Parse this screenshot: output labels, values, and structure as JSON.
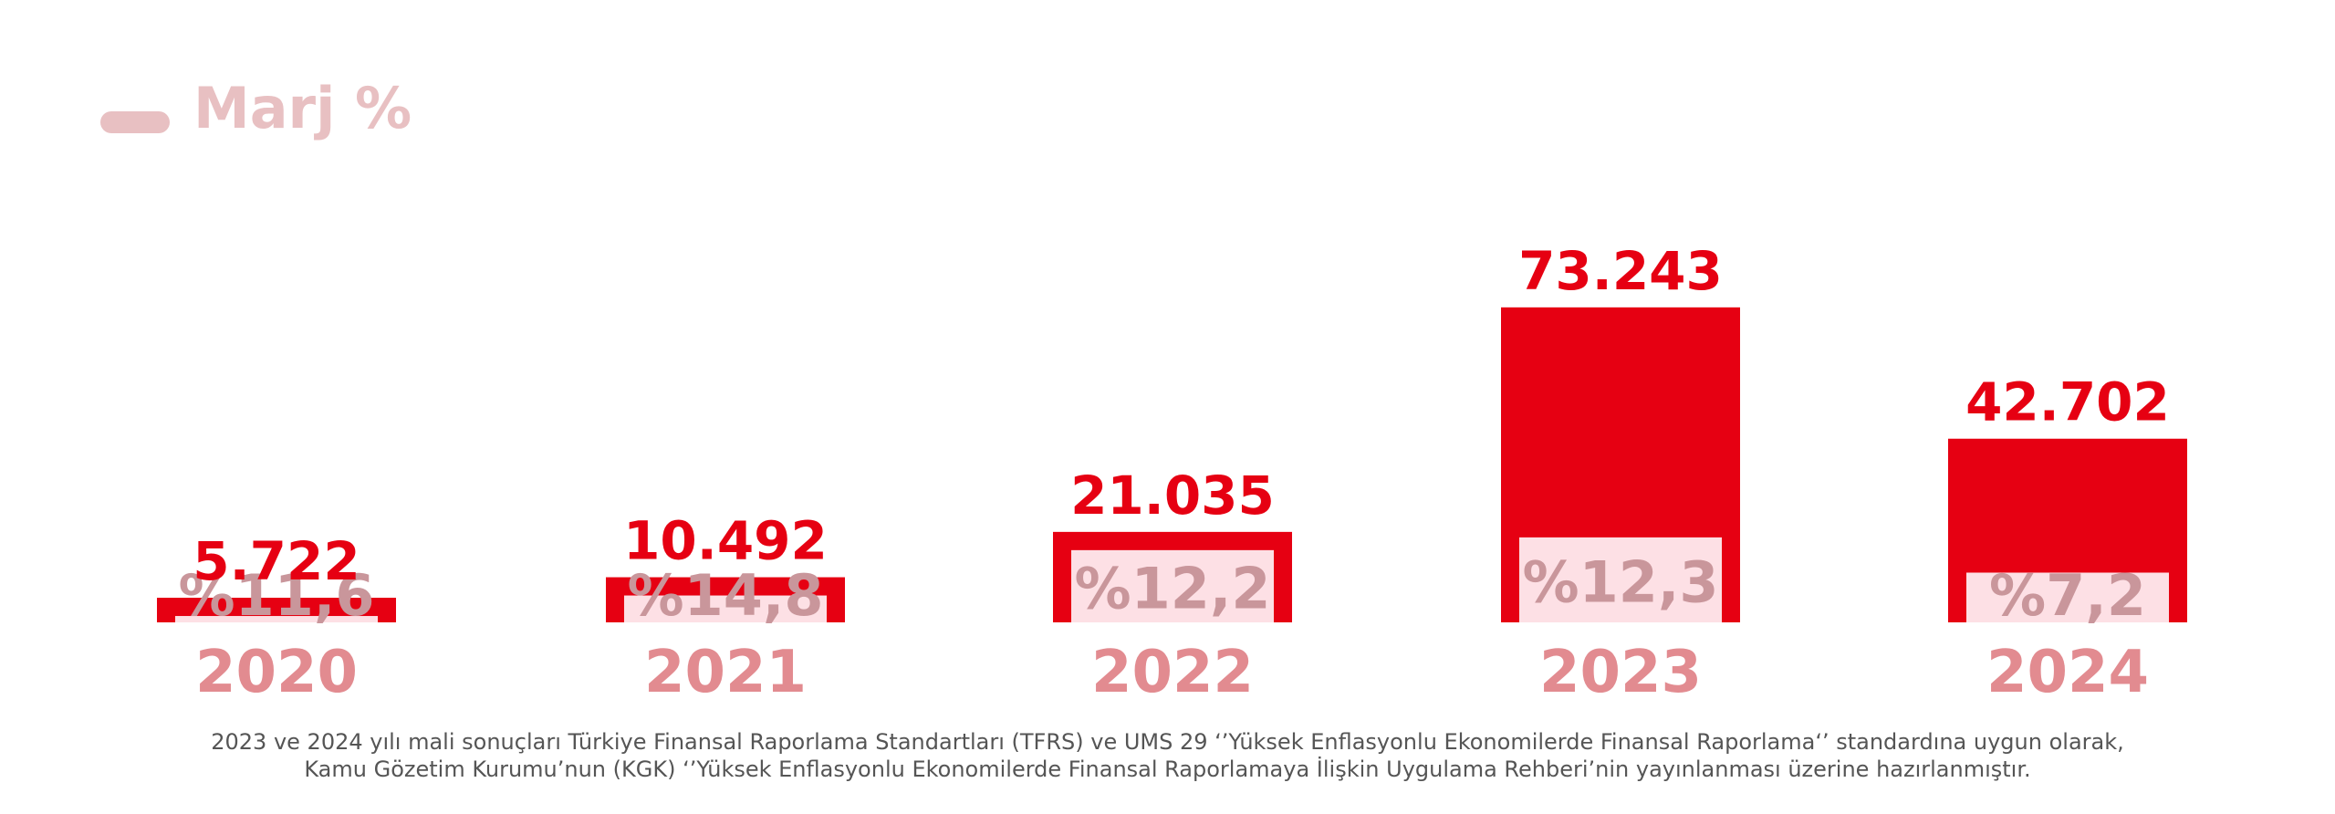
{
  "chart_data": {
    "type": "bar",
    "categories": [
      "2020",
      "2021",
      "2022",
      "2023",
      "2024"
    ],
    "series": [
      {
        "values": [
          5722,
          10492,
          21035,
          73243,
          42702
        ],
        "value_labels": [
          "5.722",
          "10.492",
          "21.035",
          "73.243",
          "42.702"
        ]
      },
      {
        "name": "Marj %",
        "values": [
          11.6,
          14.8,
          12.2,
          12.3,
          7.2
        ],
        "value_labels": [
          "%11,6",
          "%14,8",
          "%12,2",
          "%12,3",
          "%7,2"
        ]
      }
    ],
    "legend": {
      "label": "Marj %",
      "placement": "top-left"
    },
    "colors": {
      "bar": "#e60012",
      "margin_fill": "#fde0e5",
      "value_label": "#e60012",
      "margin_label": "#c9969b",
      "category_label": "#e28b90",
      "legend": "#e8c0c2"
    },
    "xlabel": "",
    "ylabel": ""
  },
  "footnote": {
    "line1": "2023 ve 2024 yılı mali sonuçları Türkiye Finansal Raporlama Standartları (TFRS) ve UMS 29 ‘’Yüksek Enflasyonlu Ekonomilerde Finansal Raporlama‘’ standardına uygun olarak,",
    "line2": "Kamu Gözetim Kurumu’nun (KGK) ‘’Yüksek Enflasyonlu Ekonomilerde Finansal Raporlamaya İlişkin Uygulama Rehberi’nin yayınlanması üzerine hazırlanmıştır."
  }
}
